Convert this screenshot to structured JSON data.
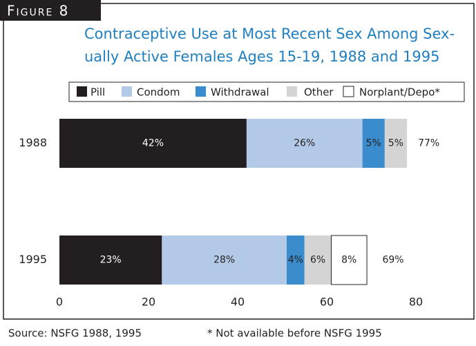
{
  "chart_data": {
    "type": "stacked_barh",
    "figure_label": "Figure 8",
    "title": [
      "Contraceptive Use at Most Recent Sex Among Sex-",
      "ually Active Females Ages 15-19, 1988 and 1995"
    ],
    "categories": [
      "1988",
      "1995"
    ],
    "series": [
      {
        "name": "Pill",
        "color": "#231f20",
        "values": [
          42,
          23
        ],
        "value_labels": [
          "42%",
          "23%"
        ]
      },
      {
        "name": "Condom",
        "color": "#b3c9e8",
        "values": [
          26,
          28
        ],
        "value_labels": [
          "26%",
          "28%"
        ]
      },
      {
        "name": "Withdrawal",
        "color": "#3a8ccc",
        "values": [
          5,
          4
        ],
        "value_labels": [
          "5%",
          "4%"
        ]
      },
      {
        "name": "Other",
        "color": "#d4d4d4",
        "values": [
          5,
          6
        ],
        "value_labels": [
          "5%",
          "6%"
        ]
      },
      {
        "name": "Norplant/Depo*",
        "color": "#ffffff",
        "values": [
          null,
          8
        ],
        "value_labels": [
          null,
          "8%"
        ]
      }
    ],
    "totals": {
      "values": [
        77,
        69
      ],
      "value_labels": [
        "77%",
        "69%"
      ]
    },
    "xlim": [
      0,
      80
    ],
    "xticks": [
      0,
      20,
      40,
      60,
      80
    ],
    "grid": false,
    "legend": "top",
    "source": "Source: NSFG 1988, 1995",
    "note": "* Not available before NSFG 1995"
  }
}
